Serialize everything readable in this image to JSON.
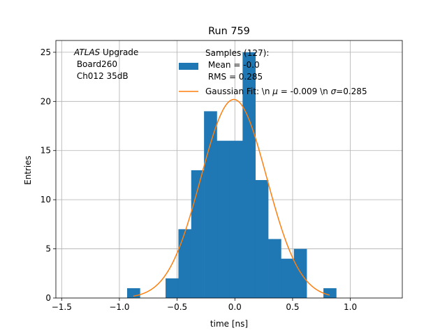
{
  "chart_data": {
    "type": "bar",
    "title": "Run 759",
    "xlabel": "time [ns]",
    "ylabel": "Entries",
    "xlim": [
      -1.55,
      1.45
    ],
    "ylim": [
      0,
      26.2
    ],
    "grid": true,
    "xticks": [
      -1.5,
      -1.0,
      -0.5,
      0.0,
      0.5,
      1.0
    ],
    "xtick_labels": [
      "−1.5",
      "−1.0",
      "−0.5",
      "0.0",
      "0.5",
      "1.0"
    ],
    "yticks": [
      0,
      5,
      10,
      15,
      20,
      25
    ],
    "ytick_labels": [
      "0",
      "5",
      "10",
      "15",
      "20",
      "25"
    ],
    "bin_width": 0.111,
    "bins": [
      {
        "x0": -0.933,
        "value": 1
      },
      {
        "x0": -0.6,
        "value": 2
      },
      {
        "x0": -0.489,
        "value": 7
      },
      {
        "x0": -0.378,
        "value": 13
      },
      {
        "x0": -0.267,
        "value": 19
      },
      {
        "x0": -0.156,
        "value": 16
      },
      {
        "x0": -0.044,
        "value": 16
      },
      {
        "x0": 0.067,
        "value": 25
      },
      {
        "x0": 0.178,
        "value": 12
      },
      {
        "x0": 0.289,
        "value": 6
      },
      {
        "x0": 0.4,
        "value": 4
      },
      {
        "x0": 0.511,
        "value": 5
      },
      {
        "x0": 0.767,
        "value": 1
      }
    ],
    "histogram_color": "#1f77b4",
    "fit": {
      "amplitude": 20.2,
      "mu": -0.009,
      "sigma": 0.285,
      "x_range": [
        -0.88,
        0.82
      ],
      "color": "#ff7f0e"
    },
    "annotation": {
      "italic": "ATLAS",
      "line1_rest": " Upgrade",
      "line2": " Board260",
      "line3": " Ch012 35dB"
    },
    "legend": {
      "placement": "top-right",
      "hist_line1": "Samples (127):",
      "hist_line2": " Mean = -0.0",
      "hist_line3": " RMS = 0.285",
      "fit_pre": "Gaussian Fit: \\n ",
      "fit_mu_sym": "μ",
      "fit_mid": " = -0.009 \\n ",
      "fit_sigma_sym": "σ",
      "fit_post": "=0.285"
    }
  }
}
